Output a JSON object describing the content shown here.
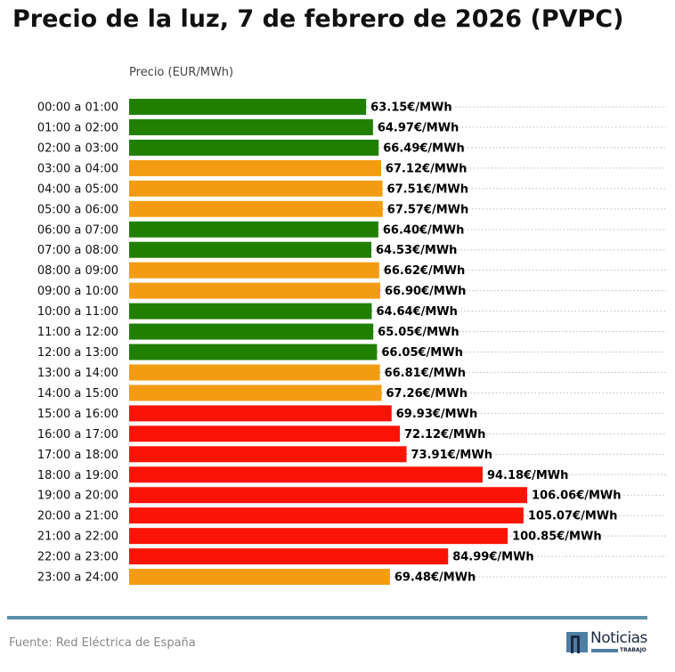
{
  "chart_data": {
    "type": "bar",
    "orientation": "horizontal",
    "title": "Precio de la luz, 7 de febrero de 2026 (PVPC)",
    "xlabel": "Precio (EUR/MWh)",
    "value_suffix": "€/MWh",
    "xlim": [
      0,
      140
    ],
    "grid": "dotted horizontal",
    "categories": [
      "00:00 a 01:00",
      "01:00 a 02:00",
      "02:00 a 03:00",
      "03:00 a 04:00",
      "04:00 a 05:00",
      "05:00 a 06:00",
      "06:00 a 07:00",
      "07:00 a 08:00",
      "08:00 a 09:00",
      "09:00 a 10:00",
      "10:00 a 11:00",
      "11:00 a 12:00",
      "12:00 a 13:00",
      "13:00 a 14:00",
      "14:00 a 15:00",
      "15:00 a 16:00",
      "16:00 a 17:00",
      "17:00 a 18:00",
      "18:00 a 19:00",
      "19:00 a 20:00",
      "20:00 a 21:00",
      "21:00 a 22:00",
      "22:00 a 23:00",
      "23:00 a 24:00"
    ],
    "values": [
      63.15,
      64.97,
      66.49,
      67.12,
      67.51,
      67.57,
      66.4,
      64.53,
      66.62,
      66.9,
      64.64,
      65.05,
      66.05,
      66.81,
      67.26,
      69.93,
      72.12,
      73.91,
      94.18,
      106.06,
      105.07,
      100.85,
      84.99,
      69.48
    ],
    "levels": [
      "low",
      "low",
      "low",
      "mid",
      "mid",
      "mid",
      "low",
      "low",
      "mid",
      "mid",
      "low",
      "low",
      "low",
      "mid",
      "mid",
      "high",
      "high",
      "high",
      "high",
      "high",
      "high",
      "high",
      "high",
      "mid"
    ],
    "colors": {
      "low": "#217f00",
      "mid": "#f39c12",
      "high": "#fb1405"
    }
  },
  "footer": {
    "source": "Fuente: Red Eléctrica de España",
    "logo_text": "Noticias",
    "logo_sub": "TRABAJO"
  }
}
